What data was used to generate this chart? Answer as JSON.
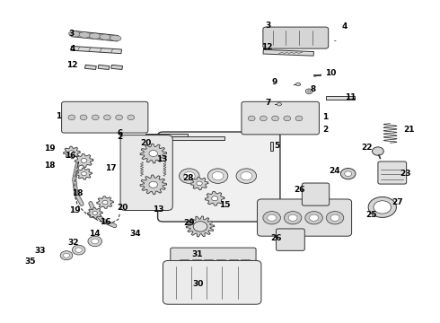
{
  "bg_color": "#ffffff",
  "line_color": "#333333",
  "label_color": "#000000",
  "label_fontsize": 6.5,
  "fig_width": 4.9,
  "fig_height": 3.6,
  "dpi": 100
}
